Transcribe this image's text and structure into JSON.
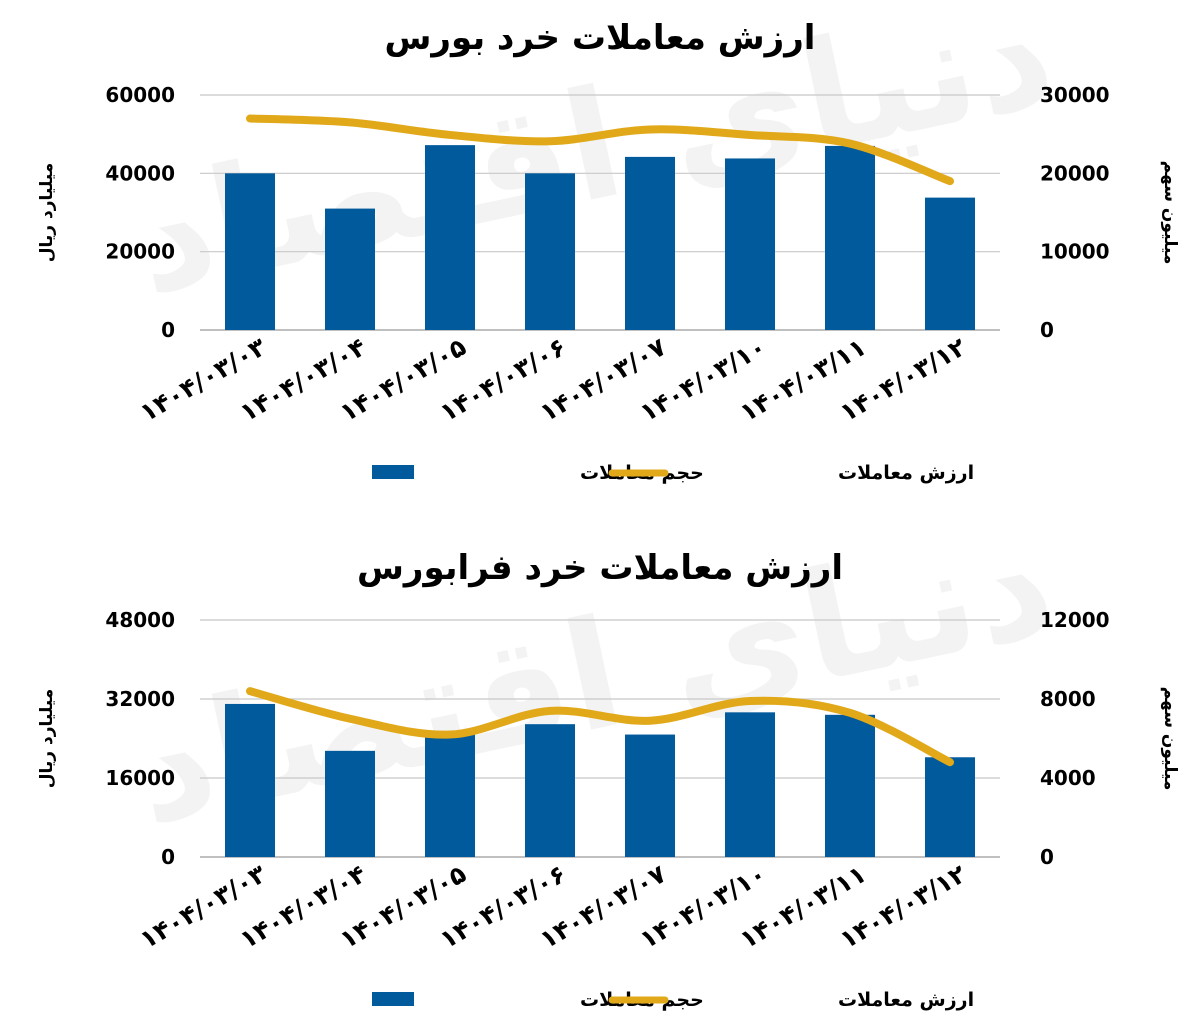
{
  "watermark": "دنیای اقتصاد",
  "chart_data": [
    {
      "type": "bar",
      "title": "ارزش معاملات خرد بورس",
      "categories": [
        "۱۴۰۴/۰۳/۰۳",
        "۱۴۰۴/۰۳/۰۴",
        "۱۴۰۴/۰۳/۰۵",
        "۱۴۰۴/۰۳/۰۶",
        "۱۴۰۴/۰۳/۰۷",
        "۱۴۰۴/۰۳/۱۰",
        "۱۴۰۴/۰۳/۱۱",
        "۱۴۰۴/۰۳/۱۲"
      ],
      "series": [
        {
          "name": "حجم معاملات",
          "type": "bar",
          "axis": "left",
          "color": "#005A9C",
          "values": [
            40000,
            31000,
            47200,
            40000,
            44200,
            43800,
            47000,
            33800
          ]
        },
        {
          "name": "ارزش معاملات",
          "type": "line",
          "axis": "right",
          "color": "#E1A91A",
          "values": [
            27000,
            26500,
            24900,
            24100,
            25600,
            24900,
            23800,
            19000
          ]
        }
      ],
      "ylabel_left": "میلیارد ریال",
      "ylabel_right": "میلیون سهم",
      "ylim_left": [
        0,
        60000
      ],
      "ylim_right": [
        0,
        30000
      ],
      "yticks_left": [
        "60000",
        "40000",
        "20000",
        "0"
      ],
      "yticks_right": [
        "30000",
        "20000",
        "10000",
        "0"
      ],
      "grid": true,
      "legend": "bottom"
    },
    {
      "type": "bar",
      "title": "ارزش معاملات خرد فرابورس",
      "categories": [
        "۱۴۰۴/۰۳/۰۳",
        "۱۴۰۴/۰۳/۰۴",
        "۱۴۰۴/۰۳/۰۵",
        "۱۴۰۴/۰۳/۰۶",
        "۱۴۰۴/۰۳/۰۷",
        "۱۴۰۴/۰۳/۱۰",
        "۱۴۰۴/۰۳/۱۱",
        "۱۴۰۴/۰۳/۱۲"
      ],
      "series": [
        {
          "name": "حجم معاملات",
          "type": "bar",
          "axis": "left",
          "color": "#005A9C",
          "values": [
            31000,
            21500,
            25400,
            26900,
            24800,
            29300,
            28800,
            20200
          ]
        },
        {
          "name": "ارزش معاملات",
          "type": "line",
          "axis": "right",
          "color": "#E1A91A",
          "values": [
            8400,
            7000,
            6200,
            7400,
            6900,
            7900,
            7300,
            4800
          ]
        }
      ],
      "ylabel_left": "میلیارد ریال",
      "ylabel_right": "میلیون سهم",
      "ylim_left": [
        0,
        48000
      ],
      "ylim_right": [
        0,
        12000
      ],
      "yticks_left": [
        "48000",
        "32000",
        "16000",
        "0"
      ],
      "yticks_right": [
        "12000",
        "8000",
        "4000",
        "0"
      ],
      "grid": true,
      "legend": "bottom"
    }
  ]
}
